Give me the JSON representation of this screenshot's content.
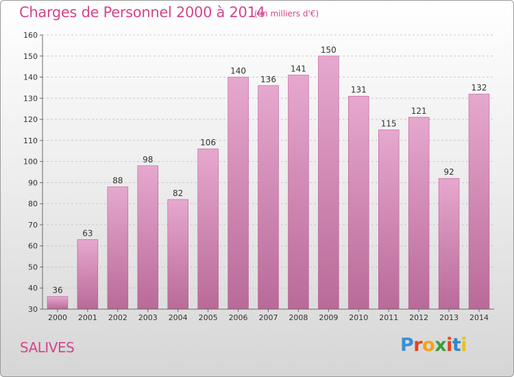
{
  "header": {
    "title": "Charges de Personnel 2000 à 2014",
    "unit": "(en milliers d'€)"
  },
  "footer": {
    "commune": "SALIVES",
    "logo_text": "Proxiti"
  },
  "colors": {
    "title": "#d4458c",
    "bar_top": "#e6a8cf",
    "bar_bottom": "#b96a98",
    "bar_stroke": "#c05a92",
    "logo_letters": [
      "#3b8fd6",
      "#e0441e",
      "#f2a21b",
      "#3c9e3c",
      "#e0441e",
      "#2e87c9",
      "#e6c21b"
    ]
  },
  "chart_data": {
    "type": "bar",
    "title": "Charges de Personnel 2000 à 2014",
    "subtitle": "(en milliers d'€)",
    "xlabel": "",
    "ylabel": "",
    "categories": [
      "2000",
      "2001",
      "2002",
      "2003",
      "2004",
      "2005",
      "2006",
      "2007",
      "2008",
      "2009",
      "2010",
      "2011",
      "2012",
      "2013",
      "2014"
    ],
    "values": [
      36,
      63,
      88,
      98,
      82,
      106,
      140,
      136,
      141,
      150,
      131,
      115,
      121,
      92,
      132
    ],
    "ylim": [
      30,
      160
    ],
    "yticks": [
      30,
      40,
      50,
      60,
      70,
      80,
      90,
      100,
      110,
      120,
      130,
      140,
      150,
      160
    ],
    "grid": true,
    "data_labels": true
  }
}
